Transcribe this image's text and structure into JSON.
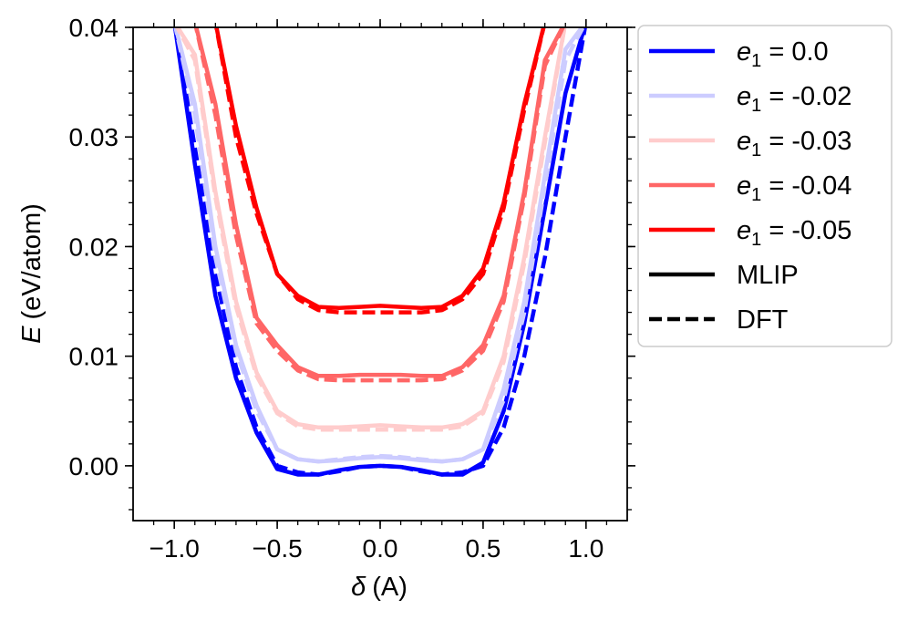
{
  "chart_data": {
    "type": "line",
    "xlabel": {
      "symbol": "δ",
      "unit": "(A)"
    },
    "ylabel": {
      "symbol": "E",
      "unit": "(eV/atom)"
    },
    "xlim": [
      -1.2,
      1.2
    ],
    "ylim": [
      -0.005,
      0.04
    ],
    "xticks": [
      -1.0,
      -0.5,
      0.0,
      0.5,
      1.0
    ],
    "xtick_labels": [
      "−1.0",
      "−0.5",
      "0.0",
      "0.5",
      "1.0"
    ],
    "yticks": [
      0.0,
      0.01,
      0.02,
      0.03,
      0.04
    ],
    "ytick_labels": [
      "0.00",
      "0.01",
      "0.02",
      "0.03",
      "0.04"
    ],
    "grid": false,
    "legend_placement": "outside-right-top",
    "style_legend": [
      {
        "label": "MLIP",
        "dash": "solid"
      },
      {
        "label": "DFT",
        "dash": "dashed"
      }
    ],
    "x": [
      -1.0,
      -0.9,
      -0.8,
      -0.7,
      -0.6,
      -0.5,
      -0.4,
      -0.3,
      -0.2,
      -0.1,
      0.0,
      0.1,
      0.2,
      0.3,
      0.4,
      0.5,
      0.6,
      0.7,
      0.8,
      0.9,
      1.0
    ],
    "series": [
      {
        "name": "e1 = 0.0",
        "name_base": "e",
        "name_sub": "1",
        "name_value": " = 0.0",
        "color": "#0000ff",
        "mlip": [
          0.0405,
          0.0275,
          0.0155,
          0.008,
          0.003,
          -0.0003,
          -0.0008,
          -0.0008,
          -0.0004,
          -0.0001,
          0.0,
          -0.0001,
          -0.0004,
          -0.0008,
          -0.0008,
          0.0003,
          0.005,
          0.013,
          0.0235,
          0.034,
          0.0405
        ],
        "dft": [
          0.0405,
          0.029,
          0.0175,
          0.009,
          0.0035,
          0.0,
          -0.0006,
          -0.0008,
          -0.0005,
          -0.0001,
          0.0,
          -0.0001,
          -0.0005,
          -0.0008,
          -0.0006,
          0.0,
          0.0035,
          0.01,
          0.019,
          0.03,
          0.0405
        ]
      },
      {
        "name": "e1 = -0.02",
        "name_base": "e",
        "name_sub": "1",
        "name_value": " = -0.02",
        "color": "#ccccff",
        "mlip": [
          0.0405,
          0.033,
          0.02,
          0.011,
          0.0055,
          0.0015,
          0.0006,
          0.0004,
          0.0005,
          0.0007,
          0.0008,
          0.0007,
          0.0005,
          0.0004,
          0.0006,
          0.0015,
          0.007,
          0.015,
          0.0265,
          0.038,
          0.0405
        ],
        "dft": [
          0.0405,
          0.032,
          0.019,
          0.0105,
          0.005,
          0.0015,
          0.0006,
          0.0004,
          0.0006,
          0.0008,
          0.0009,
          0.0008,
          0.0006,
          0.0004,
          0.0006,
          0.0015,
          0.006,
          0.014,
          0.0255,
          0.037,
          0.0405
        ]
      },
      {
        "name": "e1 = -0.03",
        "name_base": "e",
        "name_sub": "1",
        "name_value": " = -0.03",
        "color": "#ffcccc",
        "mlip": [
          0.0405,
          0.0375,
          0.025,
          0.015,
          0.0085,
          0.005,
          0.0038,
          0.0035,
          0.0035,
          0.0036,
          0.0037,
          0.0036,
          0.0035,
          0.0035,
          0.0038,
          0.005,
          0.01,
          0.019,
          0.03,
          0.0405,
          0.0405
        ],
        "dft": [
          0.0405,
          0.037,
          0.0245,
          0.0145,
          0.0082,
          0.0048,
          0.0036,
          0.0033,
          0.0033,
          0.0033,
          0.0033,
          0.0033,
          0.0033,
          0.0033,
          0.0036,
          0.0048,
          0.0095,
          0.0185,
          0.0295,
          0.0405,
          0.0405
        ]
      },
      {
        "name": "e1 = -0.04",
        "name_base": "e",
        "name_sub": "1",
        "name_value": " = -0.04",
        "color": "#ff6666",
        "mlip": [
          0.0405,
          0.0405,
          0.033,
          0.022,
          0.0135,
          0.011,
          0.009,
          0.0082,
          0.0082,
          0.0083,
          0.0083,
          0.0083,
          0.0082,
          0.0082,
          0.009,
          0.011,
          0.0155,
          0.025,
          0.037,
          0.0405,
          0.0405
        ],
        "dft": [
          0.0405,
          0.0405,
          0.032,
          0.021,
          0.013,
          0.0105,
          0.0087,
          0.0079,
          0.0078,
          0.0078,
          0.0078,
          0.0078,
          0.0078,
          0.0079,
          0.0087,
          0.0105,
          0.015,
          0.0245,
          0.0365,
          0.0405,
          0.0405
        ]
      },
      {
        "name": "e1 = -0.05",
        "name_base": "e",
        "name_sub": "1",
        "name_value": " = -0.05",
        "color": "#ff0000",
        "mlip": [
          0.0405,
          0.0405,
          0.0405,
          0.031,
          0.0235,
          0.0175,
          0.0155,
          0.0145,
          0.0144,
          0.0145,
          0.0146,
          0.0145,
          0.0144,
          0.0145,
          0.0155,
          0.018,
          0.024,
          0.033,
          0.0405,
          0.0405,
          0.0405
        ],
        "dft": [
          0.0405,
          0.0405,
          0.0405,
          0.03,
          0.023,
          0.0175,
          0.0152,
          0.0142,
          0.014,
          0.014,
          0.014,
          0.014,
          0.014,
          0.0142,
          0.0152,
          0.0175,
          0.0235,
          0.0325,
          0.0405,
          0.0405,
          0.0405
        ]
      }
    ]
  }
}
